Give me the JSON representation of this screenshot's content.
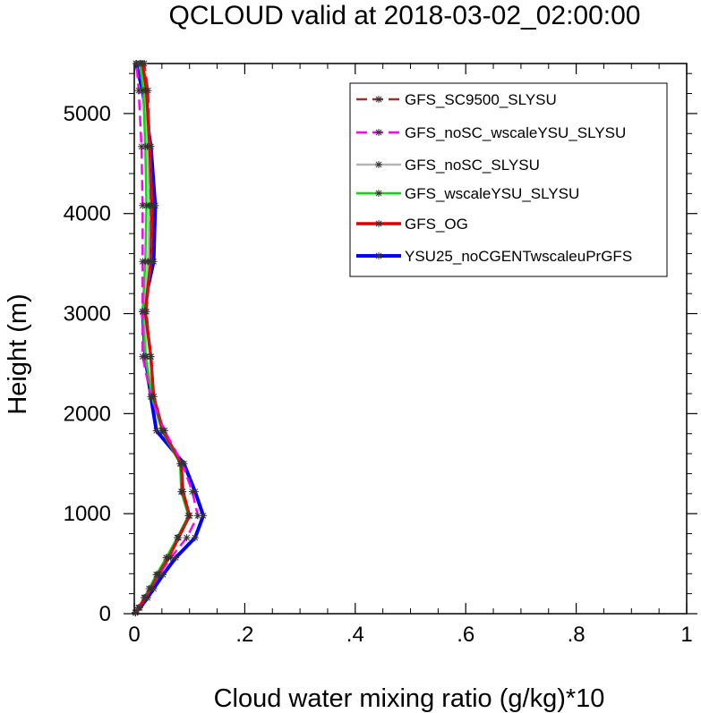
{
  "chart_data": {
    "type": "line",
    "title": "QCLOUD valid at 2018-03-02_02:00:00",
    "xlabel": "Cloud water mixing ratio (g/kg)*10",
    "ylabel": "Height (m)",
    "xlim": [
      0,
      1
    ],
    "ylim": [
      0,
      5500
    ],
    "x_ticks": [
      0,
      0.2,
      0.4,
      0.6,
      0.8,
      1
    ],
    "x_tick_labels": [
      "0",
      ".2",
      ".4",
      ".6",
      ".8",
      "1"
    ],
    "y_ticks": [
      0,
      1000,
      2000,
      3000,
      4000,
      5000
    ],
    "y_tick_labels": [
      "0",
      "1000",
      "2000",
      "3000",
      "4000",
      "5000"
    ],
    "grid": false,
    "legend_position": "top-right",
    "y": [
      10,
      30,
      60,
      100,
      160,
      250,
      390,
      560,
      760,
      980,
      1220,
      1500,
      1830,
      2170,
      2570,
      3020,
      3520,
      4080,
      4670,
      5230,
      5500
    ],
    "series": [
      {
        "name": "GFS_SC9500_SLYSU",
        "color": "#a52a2a",
        "dash": "dash",
        "x": [
          0.002,
          0.004,
          0.008,
          0.013,
          0.02,
          0.03,
          0.043,
          0.062,
          0.08,
          0.1,
          0.087,
          0.085,
          0.052,
          0.035,
          0.03,
          0.022,
          0.03,
          0.03,
          0.028,
          0.025,
          0.018
        ]
      },
      {
        "name": "GFS_noSC_wscaleYSU_SLYSU",
        "color": "#ff00ff",
        "dash": "dash",
        "x": [
          0.002,
          0.004,
          0.008,
          0.013,
          0.02,
          0.03,
          0.045,
          0.066,
          0.095,
          0.115,
          0.105,
          0.087,
          0.055,
          0.03,
          0.015,
          0.015,
          0.015,
          0.015,
          0.013,
          0.008,
          0.004
        ]
      },
      {
        "name": "GFS_noSC_SLYSU",
        "color": "#b4b4b4",
        "dash": "solid",
        "x": [
          0.002,
          0.004,
          0.008,
          0.012,
          0.018,
          0.027,
          0.04,
          0.058,
          0.078,
          0.098,
          0.087,
          0.085,
          0.05,
          0.032,
          0.022,
          0.018,
          0.025,
          0.027,
          0.024,
          0.02,
          0.012
        ]
      },
      {
        "name": "GFS_wscaleYSU_SLYSU",
        "color": "#00e000",
        "dash": "solid",
        "x": [
          0.002,
          0.004,
          0.008,
          0.012,
          0.018,
          0.027,
          0.04,
          0.058,
          0.078,
          0.098,
          0.085,
          0.083,
          0.05,
          0.032,
          0.02,
          0.015,
          0.02,
          0.022,
          0.02,
          0.016,
          0.01
        ]
      },
      {
        "name": "GFS_OG",
        "color": "#e00000",
        "dash": "solid",
        "x": [
          0.002,
          0.004,
          0.008,
          0.013,
          0.02,
          0.03,
          0.043,
          0.062,
          0.08,
          0.1,
          0.088,
          0.085,
          0.052,
          0.035,
          0.03,
          0.02,
          0.03,
          0.032,
          0.028,
          0.022,
          0.015
        ]
      },
      {
        "name": "YSU25_noCGENTwscaleuPrGFS",
        "color": "#0000ff",
        "dash": "solid",
        "x": [
          0.002,
          0.005,
          0.01,
          0.016,
          0.024,
          0.035,
          0.052,
          0.075,
          0.11,
          0.125,
          0.11,
          0.09,
          0.04,
          0.03,
          0.02,
          0.015,
          0.035,
          0.038,
          0.03,
          0.015,
          0.003
        ]
      }
    ]
  }
}
